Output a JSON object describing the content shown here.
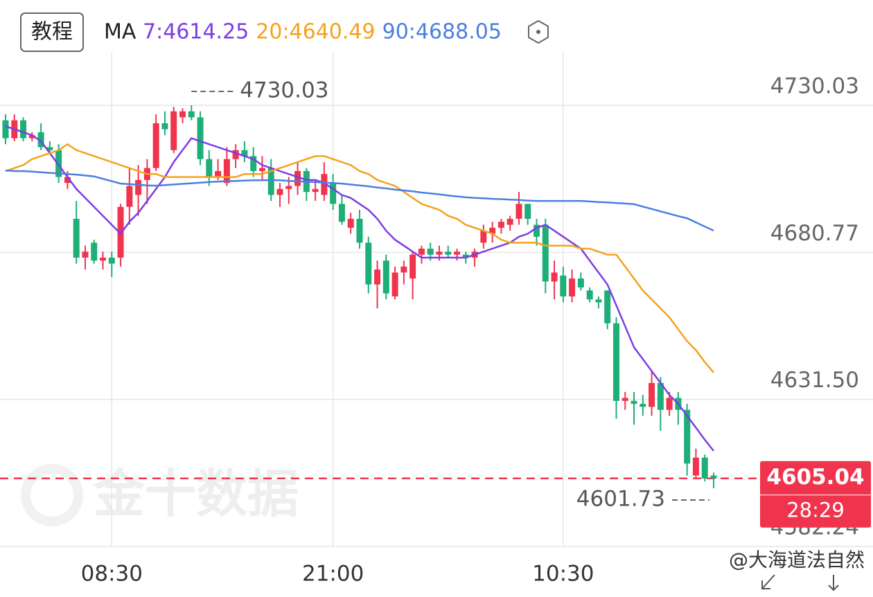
{
  "header": {
    "button": "教程",
    "ma_label": "MA"
  },
  "watermark": "金十数据",
  "credit": "@大海道法自然",
  "chart_data": {
    "type": "candlestick",
    "categories": [
      null,
      null,
      null,
      null,
      null,
      null,
      null,
      null,
      null,
      null,
      null,
      null,
      "08:30",
      null,
      null,
      null,
      null,
      null,
      null,
      null,
      null,
      null,
      null,
      null,
      null,
      null,
      null,
      null,
      null,
      null,
      null,
      null,
      null,
      null,
      null,
      null,
      null,
      "21:00",
      null,
      null,
      null,
      null,
      null,
      null,
      null,
      null,
      null,
      null,
      null,
      null,
      null,
      null,
      null,
      null,
      null,
      null,
      null,
      null,
      null,
      null,
      null,
      null,
      null,
      "10:30",
      null,
      null,
      null,
      null,
      null,
      null,
      null,
      null,
      null,
      null,
      null,
      null,
      null,
      null,
      null,
      null,
      null
    ],
    "open": [
      4725,
      4719,
      4725,
      4719,
      4721,
      4716,
      4715,
      4704,
      4692,
      4679,
      4684,
      4678,
      4679,
      4679,
      4696,
      4700,
      4705,
      4709,
      4724,
      4715,
      4726,
      4728,
      4726,
      4712,
      4706,
      4704,
      4712,
      4715,
      4713,
      4708,
      4709,
      4700,
      4702,
      4703,
      4708,
      4701,
      4700,
      4704,
      4697,
      4689,
      4692,
      4684,
      4670,
      4678,
      4666,
      4674,
      4672,
      4680,
      4682,
      4680,
      4681,
      4680,
      4680,
      4679,
      4684,
      4687,
      4689,
      4690,
      4692,
      4697,
      4690,
      4690,
      4671,
      4673,
      4666,
      4672,
      4668,
      4665,
      4668,
      4657,
      4631,
      4631,
      4630,
      4629,
      4637,
      4628,
      4632,
      4628,
      4606,
      4612,
      4606
    ],
    "high": [
      4727,
      4727,
      4726,
      4721,
      4724,
      4718,
      4717,
      4708,
      4698,
      4683,
      4685,
      4681,
      4681,
      4697,
      4709,
      4710,
      4712,
      4727,
      4728,
      4729.5,
      4729,
      4730.03,
      4728,
      4715,
      4712,
      4716,
      4717,
      4718,
      4716,
      4713,
      4712,
      4704,
      4706,
      4711,
      4709,
      4705,
      4711,
      4707,
      4700,
      4694,
      4695,
      4686,
      4678,
      4680,
      4676,
      4678,
      4681,
      4683,
      4684,
      4683,
      4683,
      4682,
      4681,
      4682,
      4690,
      4691,
      4692,
      4693,
      4701,
      4697,
      4692,
      4692,
      4678,
      4676,
      4675,
      4674,
      4669,
      4666,
      4668,
      4659,
      4634,
      4634,
      4633,
      4641,
      4639,
      4634,
      4634,
      4630,
      4615,
      4613,
      4607
    ],
    "low": [
      4717,
      4718,
      4718,
      4718,
      4715,
      4714,
      4704,
      4702,
      4677,
      4675,
      4677,
      4675,
      4672.5,
      4676,
      4690,
      4693,
      4697,
      4708,
      4720,
      4714,
      4724,
      4725,
      4710,
      4703,
      4705,
      4703,
      4709,
      4711,
      4706,
      4705,
      4698,
      4696,
      4697,
      4700,
      4698,
      4698,
      4698,
      4695,
      4690,
      4687,
      4682,
      4667,
      4662,
      4665,
      4665,
      4670,
      4665,
      4677,
      4678,
      4678,
      4679,
      4678,
      4677,
      4676,
      4682,
      4684,
      4687,
      4688,
      4690,
      4690,
      4683,
      4667,
      4665,
      4664,
      4664,
      4668,
      4664,
      4662,
      4655,
      4625,
      4628,
      4623,
      4626,
      4626,
      4621,
      4626,
      4623,
      4606,
      4605,
      4604,
      4601.73
    ],
    "close": [
      4719,
      4725,
      4719,
      4720,
      4716,
      4715,
      4706,
      4706,
      4679,
      4681,
      4678,
      4679,
      4677,
      4696,
      4703,
      4705,
      4709,
      4724,
      4722,
      4728,
      4728,
      4726,
      4712,
      4706,
      4708,
      4712,
      4715,
      4713,
      4708,
      4709,
      4700,
      4702,
      4703,
      4708,
      4701,
      4702,
      4707,
      4697,
      4691,
      4692,
      4684,
      4670,
      4675,
      4667,
      4674,
      4676,
      4680,
      4682,
      4680,
      4681,
      4680,
      4681,
      4679,
      4681,
      4688,
      4689,
      4691,
      4692,
      4697,
      4692,
      4686,
      4671,
      4674,
      4666,
      4672,
      4669,
      4665,
      4664,
      4657,
      4631,
      4632,
      4630,
      4629,
      4637,
      4628,
      4632,
      4628,
      4610,
      4612,
      4605,
      4605.04
    ],
    "up_color": "#f0344e",
    "down_color": "#1eae78",
    "series": [
      {
        "name": "7:4614.25",
        "color": "#7d3ce6",
        "values": [
          4723,
          4722,
          4721,
          4720,
          4718,
          4714,
          4710,
          4706,
          4702,
          4699,
          4696,
          4693,
          4690,
          4687,
          4691,
          4694,
          4698,
          4702,
          4706,
          4711,
          4715,
          4719,
          4718,
          4717,
          4716,
          4715,
          4714,
          4713,
          4712,
          4710,
          4709,
          4708,
          4707,
          4706,
          4705,
          4705,
          4704,
          4702,
          4700,
          4699,
          4697,
          4695,
          4692,
          4688,
          4685,
          4683,
          4681,
          4679,
          4679,
          4679,
          4679,
          4679,
          4679,
          4680,
          4681,
          4682,
          4683,
          4684,
          4686,
          4687,
          4689,
          4690,
          4688,
          4686,
          4684,
          4682,
          4678,
          4674,
          4670,
          4663,
          4656,
          4649,
          4645,
          4641,
          4637,
          4633,
          4630,
          4626,
          4622,
          4618,
          4614.25
        ]
      },
      {
        "name": "20:4640.49",
        "color": "#f5a21a",
        "values": [
          4708,
          4709,
          4710,
          4712,
          4713,
          4714,
          4715,
          4717,
          4715,
          4714,
          4713,
          4712,
          4711,
          4710,
          4709,
          4708,
          4707,
          4707,
          4706,
          4706,
          4706,
          4706,
          4706,
          4706,
          4706,
          4706,
          4706,
          4707,
          4707,
          4707,
          4708,
          4709,
          4710,
          4711,
          4712,
          4713,
          4713,
          4712,
          4711,
          4710,
          4708,
          4707,
          4705,
          4704,
          4703,
          4701,
          4699,
          4697,
          4696,
          4695,
          4693,
          4692,
          4690,
          4689,
          4688,
          4687,
          4685,
          4684,
          4684,
          4684,
          4684,
          4683,
          4683,
          4683,
          4683,
          4682,
          4682,
          4681,
          4680,
          4680,
          4676,
          4672,
          4668,
          4665,
          4662,
          4659,
          4655,
          4651,
          4648,
          4644,
          4640.49
        ]
      },
      {
        "name": "90:4688.05",
        "color": "#4a7fe0",
        "values": [
          4708.2,
          4708,
          4708,
          4707.8,
          4707.6,
          4707.4,
          4707.2,
          4707,
          4706.8,
          4706.5,
          4706.2,
          4705.4,
          4704.6,
          4703.8,
          4703.6,
          4703.4,
          4703.2,
          4703.1,
          4703.3,
          4703.5,
          4703.7,
          4703.9,
          4704.1,
          4704.3,
          4704.5,
          4704.6,
          4704.7,
          4704.8,
          4704.9,
          4704.9,
          4705,
          4704.9,
          4704.7,
          4704.6,
          4704.4,
          4704.3,
          4704.1,
          4704,
          4703.8,
          4703.5,
          4703.2,
          4702.9,
          4702.5,
          4702.2,
          4701.8,
          4701.5,
          4701.2,
          4700.8,
          4700.5,
          4700.2,
          4699.8,
          4699.5,
          4699.2,
          4699,
          4698.9,
          4698.7,
          4698.6,
          4698.4,
          4698.3,
          4698.1,
          4698,
          4698,
          4698,
          4698,
          4698,
          4698,
          4697.8,
          4697.6,
          4697.5,
          4697.3,
          4697.1,
          4696.9,
          4696.1,
          4695.3,
          4694.5,
          4693.7,
          4692.9,
          4692.2,
          4690.8,
          4689.4,
          4688.05
        ]
      }
    ],
    "ylim": [
      4582.24,
      4747.9
    ],
    "yticks": [
      4730.03,
      4680.77,
      {
        "value": 4631.5,
        "label": "4631.50"
      },
      4582.24
    ],
    "grid": true,
    "max_label": 4730.03,
    "min_label": 4601.73,
    "last_price": 4605.04,
    "countdown": "28:29"
  }
}
